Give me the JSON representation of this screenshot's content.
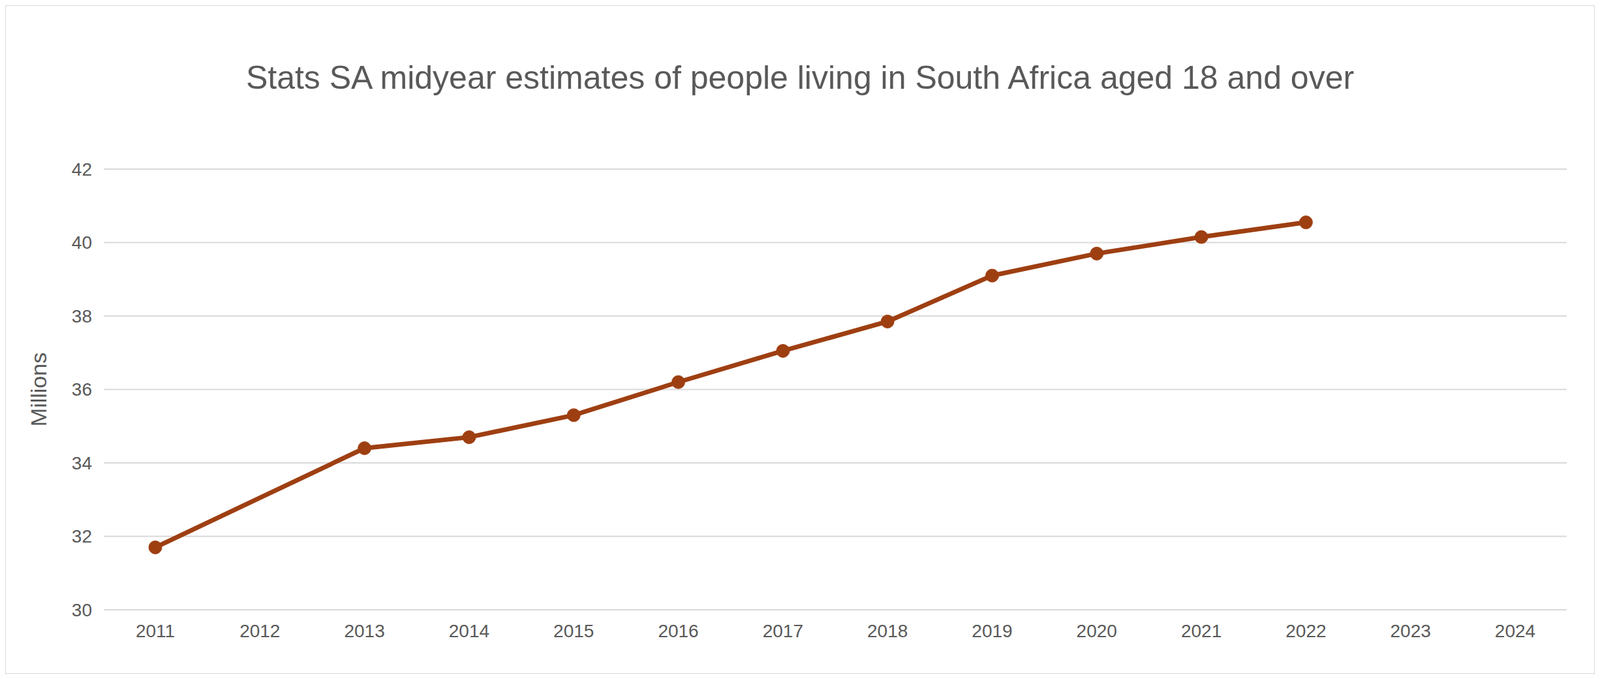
{
  "chart_data": {
    "type": "line",
    "title": "Stats SA midyear estimates of people living in South Africa aged 18 and over",
    "y_label": "Millions",
    "categories": [
      "2011",
      "2012",
      "2013",
      "2014",
      "2015",
      "2016",
      "2017",
      "2018",
      "2019",
      "2020",
      "2021",
      "2022",
      "2023",
      "2024"
    ],
    "values": [
      31.7,
      null,
      34.4,
      34.7,
      35.3,
      36.2,
      37.05,
      37.85,
      39.1,
      39.7,
      40.15,
      40.55,
      null,
      null
    ],
    "color": "#9e3f12",
    "marker": "circle",
    "ylim": [
      30,
      42
    ],
    "yticks": [
      30,
      32,
      34,
      36,
      38,
      40,
      42
    ],
    "grid": true
  }
}
